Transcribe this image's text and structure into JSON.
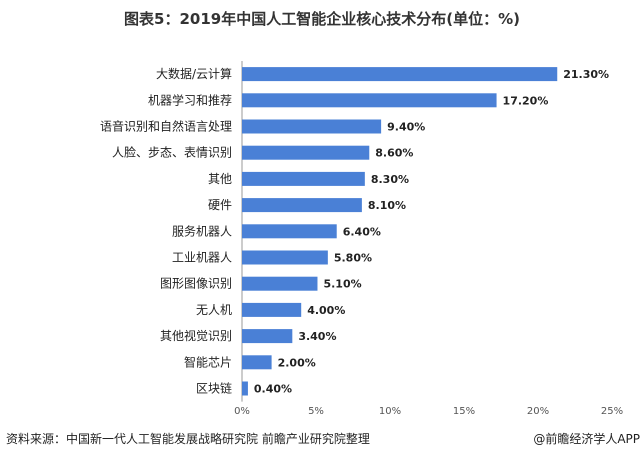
{
  "chart_data": {
    "type": "bar",
    "orientation": "horizontal",
    "title": "图表5：2019年中国人工智能企业核心技术分布(单位：%)",
    "categories": [
      "大数据/云计算",
      "机器学习和推荐",
      "语音识别和自然语言处理",
      "人脸、步态、表情识别",
      "其他",
      "硬件",
      "服务机器人",
      "工业机器人",
      "图形图像识别",
      "无人机",
      "其他视觉识别",
      "智能芯片",
      "区块链"
    ],
    "values": [
      21.3,
      17.2,
      9.4,
      8.6,
      8.3,
      8.1,
      6.4,
      5.8,
      5.1,
      4.0,
      3.4,
      2.0,
      0.4
    ],
    "data_labels": [
      "21.30%",
      "17.20%",
      "9.40%",
      "8.60%",
      "8.30%",
      "8.10%",
      "6.40%",
      "5.80%",
      "5.10%",
      "4.00%",
      "3.40%",
      "2.00%",
      "0.40%"
    ],
    "xlim": [
      0,
      25
    ],
    "xticks": [
      "0%",
      "5%",
      "10%",
      "15%",
      "20%",
      "25%"
    ],
    "grid": false,
    "bar_color": "#4a80d6"
  },
  "footer": {
    "source": "资料来源：中国新一代人工智能发展战略研究院 前瞻产业研究院整理",
    "credit": "@前瞻经济学人APP"
  }
}
